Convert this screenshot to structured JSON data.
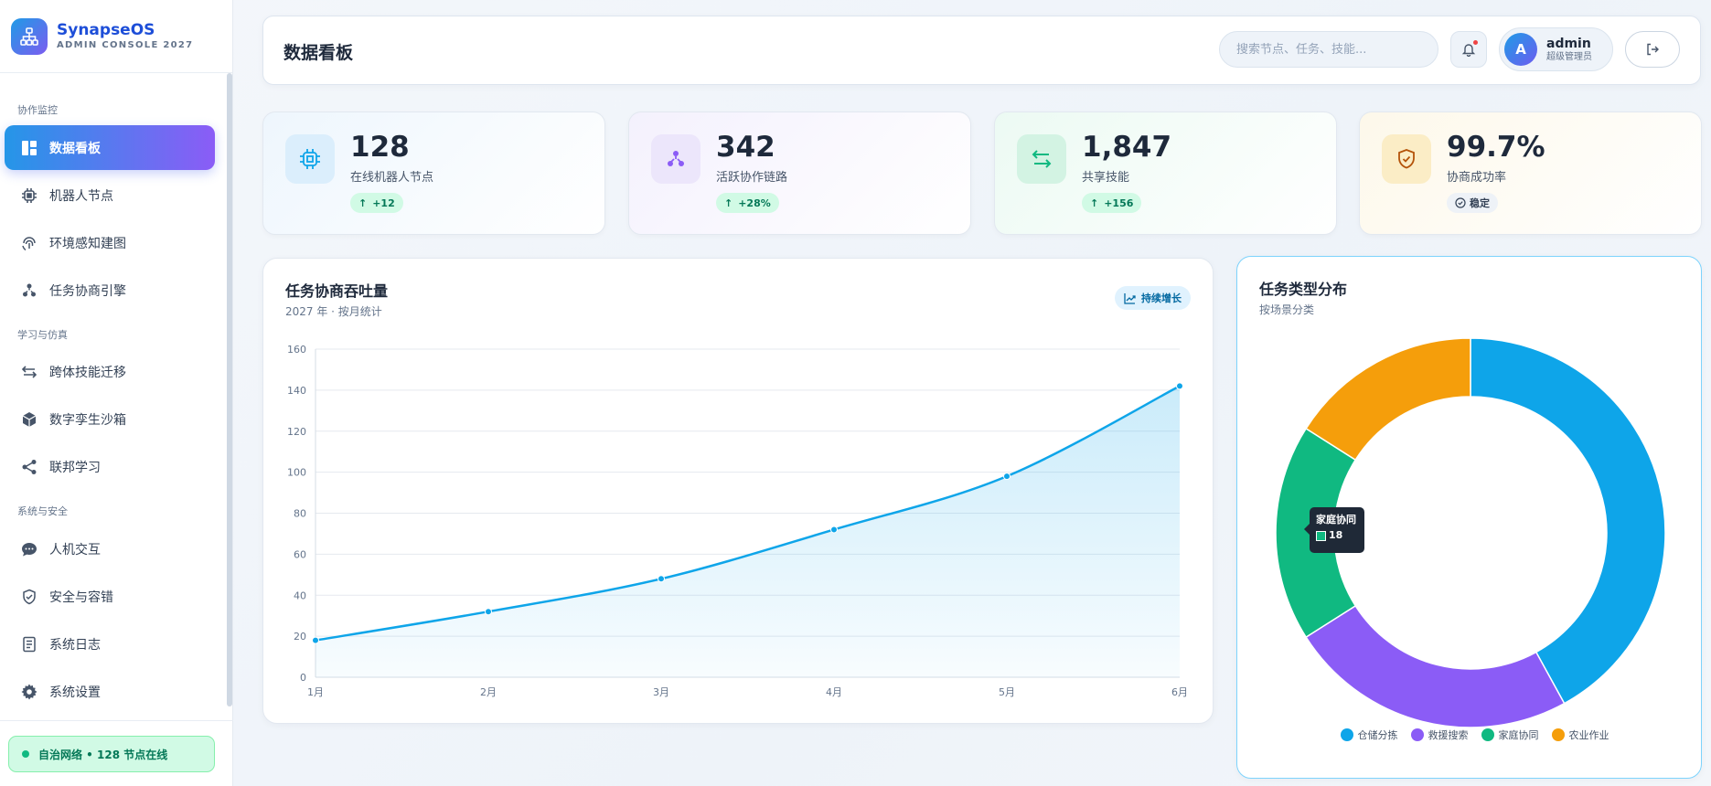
{
  "app": {
    "name": "SynapseOS",
    "subtitle": "ADMIN CONSOLE 2027"
  },
  "sidebar": {
    "sections": [
      {
        "title": "协作监控"
      },
      {
        "title": "学习与仿真"
      },
      {
        "title": "系统与安全"
      }
    ],
    "items": [
      {
        "label": "数据看板",
        "icon": "dashboard-icon",
        "active": true
      },
      {
        "label": "机器人节点",
        "icon": "chip-icon"
      },
      {
        "label": "环境感知建图",
        "icon": "fingerprint-icon"
      },
      {
        "label": "任务协商引擎",
        "icon": "hierarchy-icon"
      },
      {
        "label": "跨体技能迁移",
        "icon": "transfer-icon"
      },
      {
        "label": "数字孪生沙箱",
        "icon": "cube-icon"
      },
      {
        "label": "联邦学习",
        "icon": "share-icon"
      },
      {
        "label": "人机交互",
        "icon": "chat-icon"
      },
      {
        "label": "安全与容错",
        "icon": "shield-icon"
      },
      {
        "label": "系统日志",
        "icon": "log-icon"
      },
      {
        "label": "系统设置",
        "icon": "gear-icon"
      }
    ],
    "status": "自治网络 • 128 节点在线"
  },
  "header": {
    "title": "数据看板",
    "search_placeholder": "搜索节点、任务、技能...",
    "user": {
      "initial": "A",
      "name": "admin",
      "role": "超级管理员"
    }
  },
  "stats": [
    {
      "value": "128",
      "label": "在线机器人节点",
      "badge": "+12",
      "badge_icon": "arrow-up-icon",
      "color": "#0ea5e9"
    },
    {
      "value": "342",
      "label": "活跃协作链路",
      "badge": "+28%",
      "badge_icon": "arrow-up-icon",
      "color": "#8b5cf6"
    },
    {
      "value": "1,847",
      "label": "共享技能",
      "badge": "+156",
      "badge_icon": "arrow-up-icon",
      "color": "#10b981"
    },
    {
      "value": "99.7%",
      "label": "协商成功率",
      "badge": "稳定",
      "badge_icon": "check-circle-icon",
      "color": "#d97706"
    }
  ],
  "line_card": {
    "title": "任务协商吞吐量",
    "subtitle": "2027 年 · 按月统计",
    "pill": "持续增长"
  },
  "donut_card": {
    "title": "任务类型分布",
    "subtitle": "按场景分类",
    "tooltip": {
      "label": "家庭协同",
      "value": "18"
    }
  },
  "chart_data": [
    {
      "type": "area",
      "x": [
        "1月",
        "2月",
        "3月",
        "4月",
        "5月",
        "6月"
      ],
      "values": [
        18,
        32,
        48,
        72,
        98,
        142
      ],
      "ylim": [
        0,
        160
      ],
      "yticks": [
        0,
        20,
        40,
        60,
        80,
        100,
        120,
        140,
        160
      ],
      "grid": true,
      "color": "#0ea5e9"
    },
    {
      "type": "pie",
      "categories": [
        "仓储分拣",
        "救援搜索",
        "家庭协同",
        "农业作业"
      ],
      "values": [
        42,
        24,
        18,
        16
      ],
      "colors": [
        "#0ea5e9",
        "#8b5cf6",
        "#10b981",
        "#f59e0b"
      ],
      "legend": "bottom"
    }
  ]
}
